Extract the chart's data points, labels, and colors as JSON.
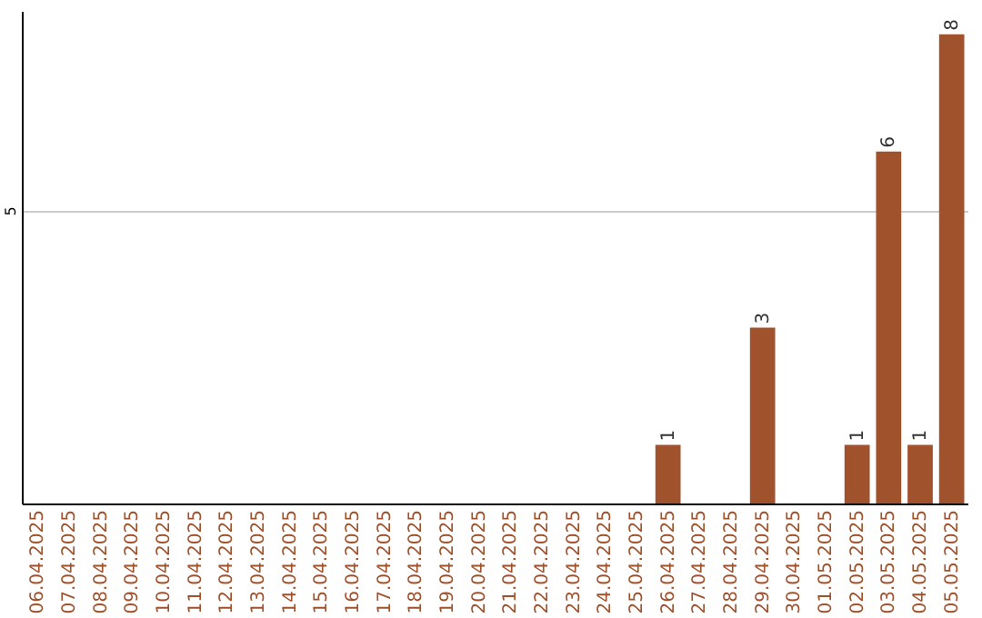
{
  "chart_data": {
    "type": "bar",
    "categories": [
      "06.04.2025",
      "07.04.2025",
      "08.04.2025",
      "09.04.2025",
      "10.04.2025",
      "11.04.2025",
      "12.04.2025",
      "13.04.2025",
      "14.04.2025",
      "15.04.2025",
      "16.04.2025",
      "17.04.2025",
      "18.04.2025",
      "19.04.2025",
      "20.04.2025",
      "21.04.2025",
      "22.04.2025",
      "23.04.2025",
      "24.04.2025",
      "25.04.2025",
      "26.04.2025",
      "27.04.2025",
      "28.04.2025",
      "29.04.2025",
      "30.04.2025",
      "01.05.2025",
      "02.05.2025",
      "03.05.2025",
      "04.05.2025",
      "05.05.2025"
    ],
    "values": [
      null,
      null,
      null,
      null,
      null,
      null,
      null,
      null,
      null,
      null,
      null,
      null,
      null,
      null,
      null,
      null,
      null,
      null,
      null,
      null,
      1,
      null,
      null,
      3,
      null,
      null,
      1,
      6,
      1,
      8
    ],
    "data_labels": true,
    "color": "#a0522d",
    "ylim": [
      0,
      8.4
    ],
    "yticks": [
      5
    ],
    "grid": "y"
  }
}
